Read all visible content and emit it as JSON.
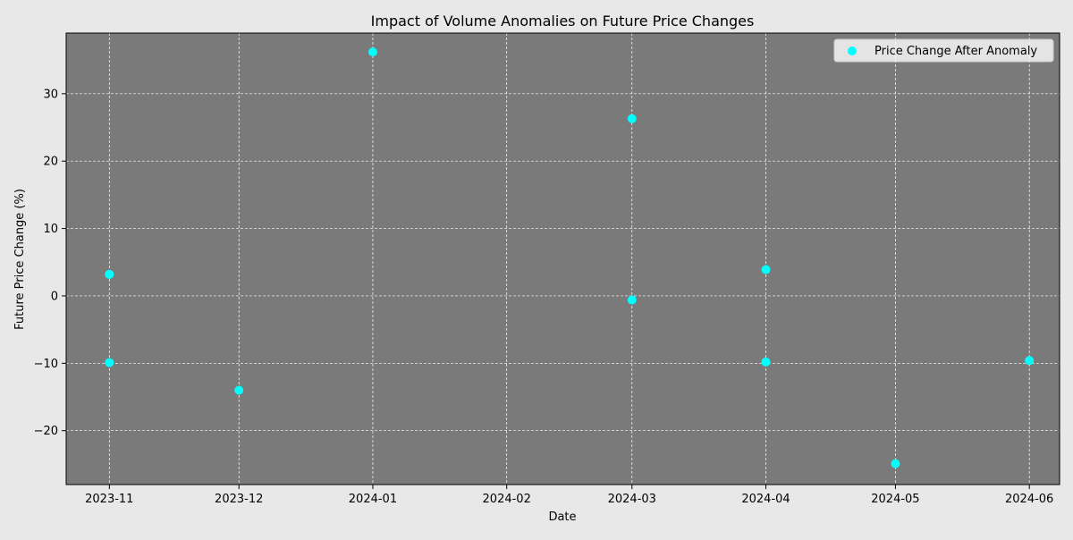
{
  "colors": {
    "figure_background": "#e8e8e8",
    "plot_background": "#7a7a7a",
    "grid": "#ffffff",
    "marker": "#00ffff",
    "text": "#000000"
  },
  "chart_data": {
    "type": "scatter",
    "title": "Impact of Volume Anomalies on Future Price Changes",
    "xlabel": "Date",
    "ylabel": "Future Price Change (%)",
    "x_ticks": [
      "2023-11",
      "2023-12",
      "2024-01",
      "2024-02",
      "2024-03",
      "2024-04",
      "2024-05",
      "2024-06"
    ],
    "xlim": [
      "2023-10-22",
      "2024-06-08"
    ],
    "ylim": [
      -28,
      39
    ],
    "y_ticks": [
      -20,
      -10,
      0,
      10,
      20,
      30
    ],
    "y_tick_labels": [
      "−20",
      "−10",
      "0",
      "10",
      "20",
      "30"
    ],
    "grid": true,
    "legend": {
      "position": "top-right",
      "entries": [
        "Price Change After Anomaly"
      ]
    },
    "series": [
      {
        "name": "Price Change After Anomaly",
        "points": [
          {
            "x": "2023-11-01",
            "y": 3.2
          },
          {
            "x": "2023-11-01",
            "y": -9.9
          },
          {
            "x": "2023-12-01",
            "y": -14.0
          },
          {
            "x": "2024-01-01",
            "y": 36.2
          },
          {
            "x": "2024-03-01",
            "y": 26.3
          },
          {
            "x": "2024-03-01",
            "y": -0.6
          },
          {
            "x": "2024-04-01",
            "y": 3.9
          },
          {
            "x": "2024-04-01",
            "y": -9.8
          },
          {
            "x": "2024-05-01",
            "y": -24.9
          },
          {
            "x": "2024-06-01",
            "y": -9.6
          }
        ]
      }
    ]
  }
}
